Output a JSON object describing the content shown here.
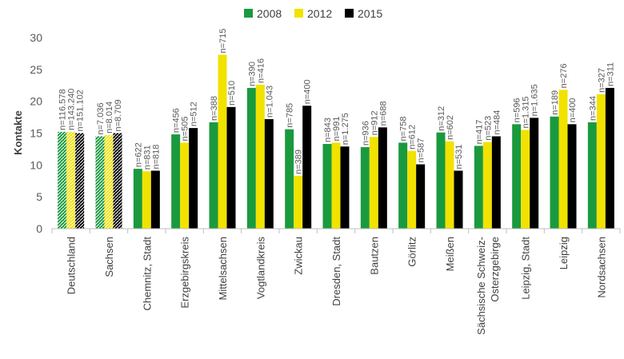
{
  "chart_data": {
    "type": "bar",
    "title": "",
    "xlabel": "",
    "ylabel": "Kontakte",
    "ylim": [
      0,
      30
    ],
    "yticks": [
      0,
      5,
      10,
      15,
      20,
      25,
      30
    ],
    "grid": false,
    "legend_position": "top-center",
    "categories": [
      "Deutschland",
      "Sachsen",
      "Chemnitz, Stadt",
      "Erzgebirgskreis",
      "Mittelsachsen",
      "Vogtlandkreis",
      "Zwickau",
      "Dresden, Stadt",
      "Bautzen",
      "Görlitz",
      "Meißen",
      "Sächsische Schweiz-\nOsterzgebirge",
      "Leipzig, Stadt",
      "Leipzig",
      "Nordsachsen"
    ],
    "series": [
      {
        "name": "2008",
        "color": "#1a9a3e",
        "values": [
          15.2,
          14.5,
          9.4,
          14.8,
          16.7,
          22.1,
          15.6,
          13.3,
          12.8,
          13.5,
          15.1,
          13.0,
          16.4,
          17.6,
          16.7
        ],
        "labels": [
          "n=116.578",
          "n=7.036",
          "n=622",
          "n=456",
          "n=388",
          "n=390",
          "n=785",
          "n=843",
          "n=936",
          "n=758",
          "n=312",
          "n=417",
          "n=596",
          "n=189",
          "n=344"
        ]
      },
      {
        "name": "2012",
        "color": "#f2e200",
        "values": [
          15.2,
          14.7,
          9.0,
          13.5,
          27.3,
          22.6,
          8.3,
          13.5,
          14.4,
          12.2,
          13.7,
          13.6,
          15.5,
          21.8,
          21.1
        ],
        "labels": [
          "n=143.240",
          "n=8.014",
          "n=831",
          "n=505",
          "n=715",
          "n=416",
          "n=389",
          "n=991",
          "n=912",
          "n=612",
          "n=602",
          "n=523",
          "n=1.315",
          "n=276",
          "n=327"
        ]
      },
      {
        "name": "2015",
        "color": "#000000",
        "values": [
          15.0,
          15.0,
          9.1,
          15.8,
          19.1,
          17.2,
          19.3,
          12.9,
          15.9,
          10.1,
          9.1,
          14.5,
          17.4,
          16.4,
          22.1
        ],
        "labels": [
          "n=151.102",
          "n=8.709",
          "n=818",
          "n=512",
          "n=510",
          "n=1.043",
          "n=400",
          "n=1.275",
          "n=688",
          "n=587",
          "n=531",
          "n=484",
          "n=1.635",
          "n=400",
          "n=311"
        ]
      }
    ],
    "hatched_categories": [
      "Deutschland",
      "Sachsen"
    ]
  }
}
